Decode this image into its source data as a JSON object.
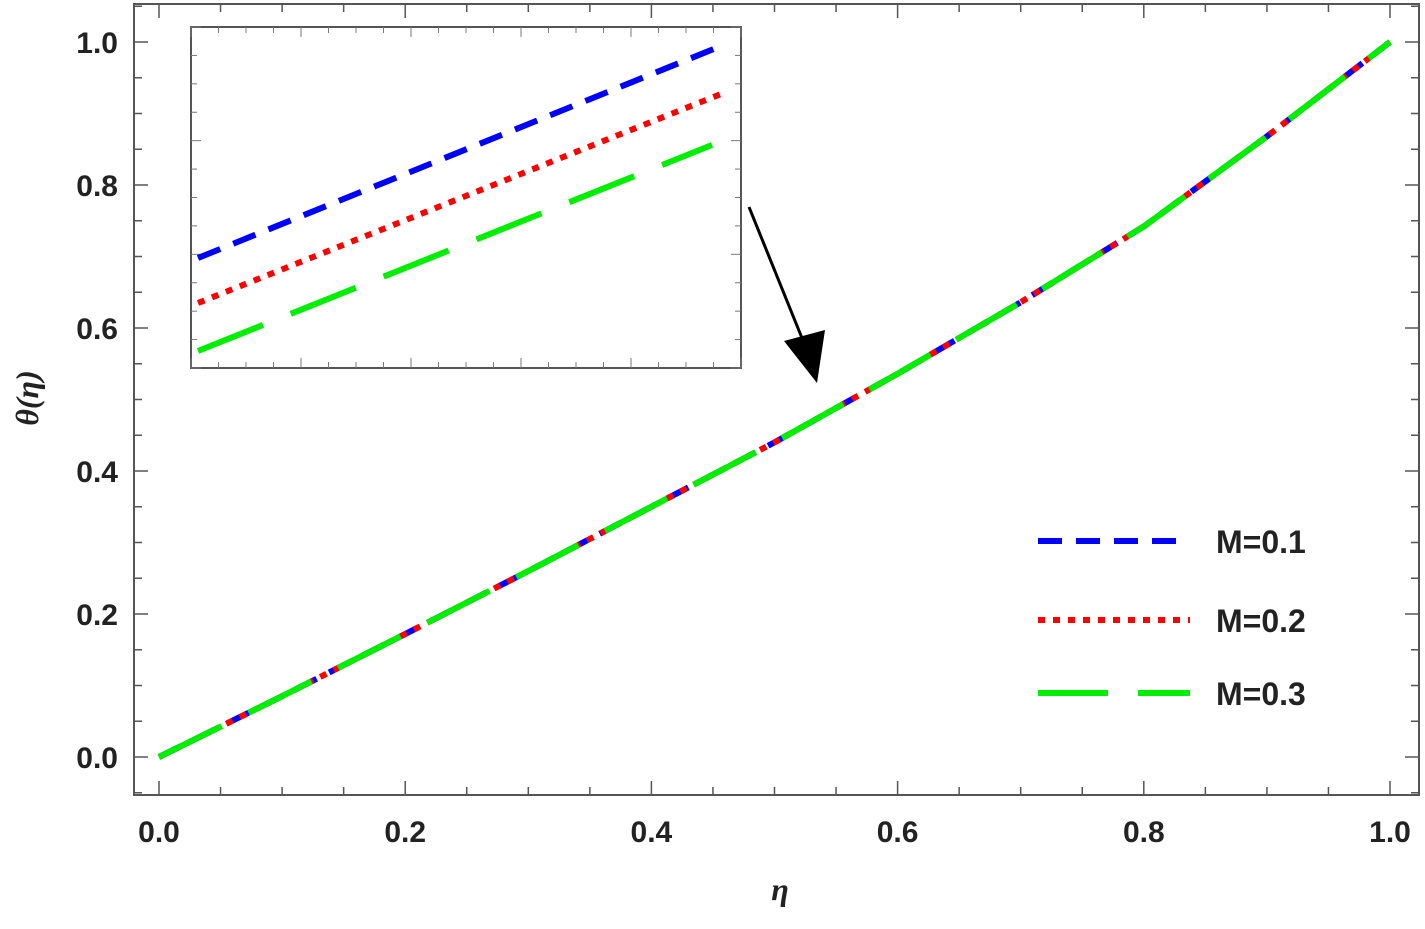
{
  "chart_data": {
    "type": "line",
    "xlabel": "η",
    "ylabel": "θ(η)",
    "xlim": [
      0.0,
      1.0
    ],
    "ylim": [
      0.0,
      1.0
    ],
    "x_ticks": [
      "0.0",
      "0.2",
      "0.4",
      "0.6",
      "0.8",
      "1.0"
    ],
    "y_ticks": [
      "0.0",
      "0.2",
      "0.4",
      "0.6",
      "0.8",
      "1.0"
    ],
    "grid": false,
    "legend_position": "bottom-right",
    "x": [
      0.0,
      0.1,
      0.2,
      0.3,
      0.4,
      0.5,
      0.6,
      0.7,
      0.8,
      0.9,
      1.0
    ],
    "series": [
      {
        "name": "M=0.1",
        "color": "#0000ff",
        "style": "dashed",
        "values": [
          0.0,
          0.085,
          0.172,
          0.26,
          0.35,
          0.44,
          0.536,
          0.636,
          0.742,
          0.868,
          1.0
        ]
      },
      {
        "name": "M=0.2",
        "color": "#ff0000",
        "style": "dotted",
        "values": [
          0.0,
          0.085,
          0.172,
          0.26,
          0.35,
          0.44,
          0.536,
          0.636,
          0.742,
          0.868,
          1.0
        ]
      },
      {
        "name": "M=0.3",
        "color": "#00ee00",
        "style": "long-dashed",
        "values": [
          0.0,
          0.085,
          0.172,
          0.26,
          0.35,
          0.44,
          0.536,
          0.636,
          0.742,
          0.868,
          1.0
        ]
      }
    ],
    "inset": {
      "description_series": [
        "M=0.1",
        "M=0.2",
        "M=0.3"
      ],
      "arrow_target": {
        "x": 0.535,
        "y": 0.5
      }
    }
  }
}
